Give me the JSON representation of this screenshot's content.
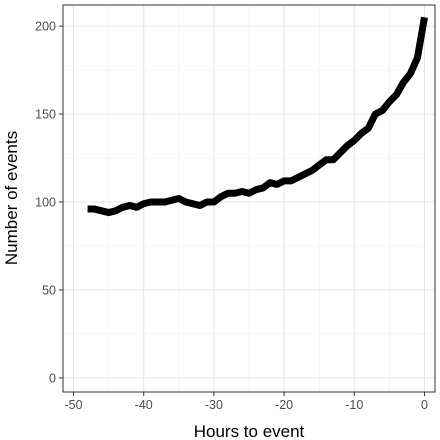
{
  "chart_data": {
    "type": "line",
    "title": "",
    "xlabel": "Hours to event",
    "ylabel": "Number of events",
    "xlim": [
      -51.5,
      1.5
    ],
    "ylim": [
      -8,
      212
    ],
    "x_ticks": [
      -50,
      -40,
      -30,
      -20,
      -10,
      0
    ],
    "y_ticks": [
      0,
      50,
      100,
      150,
      200
    ],
    "grid": true,
    "legend": "none",
    "series": [
      {
        "x": [
          -48,
          -47,
          -46,
          -45,
          -44,
          -43,
          -42,
          -41,
          -40,
          -39,
          -38,
          -37,
          -36,
          -35,
          -34,
          -33,
          -32,
          -31,
          -30,
          -29,
          -28,
          -27,
          -26,
          -25,
          -24,
          -23,
          -22,
          -21,
          -20,
          -19,
          -18,
          -17,
          -16,
          -15,
          -14,
          -13,
          -12,
          -11,
          -10,
          -9,
          -8,
          -7,
          -6,
          -5,
          -4,
          -3,
          -2,
          -1,
          0
        ],
        "values": [
          96,
          96,
          95,
          94,
          95,
          97,
          98,
          97,
          99,
          100,
          100,
          100,
          101,
          102,
          100,
          99,
          98,
          100,
          100,
          103,
          105,
          105,
          106,
          105,
          107,
          108,
          111,
          110,
          112,
          112,
          114,
          116,
          118,
          121,
          124,
          124,
          128,
          132,
          135,
          139,
          142,
          150,
          152,
          157,
          161,
          168,
          173,
          182,
          205
        ],
        "color": "#000000"
      }
    ]
  }
}
